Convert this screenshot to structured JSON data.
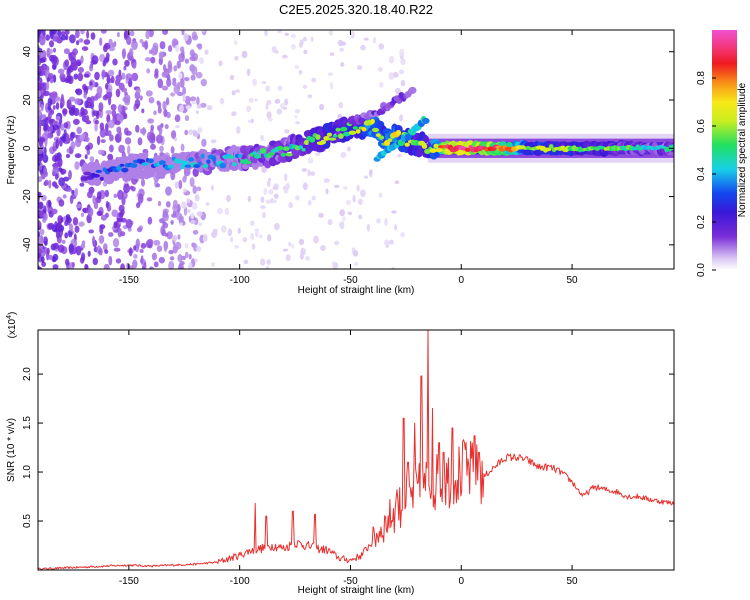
{
  "figure_title": "C2E5.2025.320.18.40.R22",
  "colors": {
    "line": "#e8312e",
    "axis": "#000000",
    "colormap": [
      "#ffffff",
      "#d8c4f2",
      "#7a2cd8",
      "#3a18d8",
      "#1448f0",
      "#18d0e8",
      "#20e060",
      "#c8ee20",
      "#f8e818",
      "#f89018",
      "#f01a20",
      "#f23c8a",
      "#f050d0"
    ]
  },
  "chart_data": [
    {
      "id": "spectrogram",
      "type": "heatmap",
      "xlabel": "Height of straight line (km)",
      "ylabel": "Frequency (Hz)",
      "xlim": [
        -191,
        96
      ],
      "ylim": [
        -50,
        49
      ],
      "xticks": [
        -150,
        -100,
        -50,
        0,
        50
      ],
      "xtick_labels": [
        "-150",
        "-100",
        "-50",
        "0",
        "50"
      ],
      "yticks": [
        40,
        20,
        0,
        -20,
        -40
      ],
      "ytick_labels": [
        "40",
        "20",
        "0",
        "-20",
        "-40"
      ],
      "colorbar": {
        "label": "Normalized spectral amplitude",
        "range": [
          0,
          1
        ],
        "ticks": [
          0.0,
          0.2,
          0.4,
          0.6,
          0.8
        ],
        "tick_labels": [
          "0.0",
          "0.2",
          "0.4",
          "0.6",
          "0.8"
        ]
      },
      "ridge": {
        "x": [
          -170,
          -160,
          -150,
          -140,
          -130,
          -120,
          -110,
          -100,
          -90,
          -80,
          -70,
          -60,
          -55,
          -50,
          -45,
          -40,
          -35,
          -30,
          -25,
          -20,
          -15,
          -10,
          -5,
          0,
          10,
          20,
          30,
          50,
          70,
          95
        ],
        "freq": [
          -11,
          -10,
          -8,
          -7,
          -6,
          -6,
          -5,
          -4,
          -3,
          -1,
          2,
          5,
          7,
          8,
          9,
          10,
          4,
          5,
          3,
          2,
          1,
          0,
          0,
          0,
          0,
          0,
          0,
          0,
          0,
          0
        ],
        "amplitude": [
          0.25,
          0.3,
          0.32,
          0.35,
          0.38,
          0.4,
          0.42,
          0.42,
          0.45,
          0.45,
          0.5,
          0.55,
          0.5,
          0.55,
          0.6,
          0.65,
          0.6,
          0.65,
          0.6,
          0.55,
          0.55,
          0.7,
          0.9,
          0.9,
          0.85,
          0.8,
          0.6,
          0.55,
          0.5,
          0.45
        ]
      },
      "branches": [
        {
          "x": [
            -38,
            -30,
            -22,
            -16
          ],
          "freq": [
            -4,
            1,
            7,
            12
          ]
        },
        {
          "x": [
            -50,
            -40,
            -32,
            -27,
            -22
          ],
          "freq": [
            11,
            14,
            18,
            21,
            23
          ]
        }
      ]
    },
    {
      "id": "snr",
      "type": "line",
      "xlabel": "Height of straight line (km)",
      "ylabel": "SNR (10 * v/v)",
      "multiplier_label": "(x10",
      "multiplier_exponent": "4",
      "xlim": [
        -191,
        96
      ],
      "ylim": [
        0,
        2.45
      ],
      "xticks": [
        -150,
        -100,
        -50,
        0,
        50
      ],
      "xtick_labels": [
        "-150",
        "-100",
        "-50",
        "0",
        "50"
      ],
      "yticks": [
        0.5,
        1.0,
        1.5,
        2.0
      ],
      "ytick_labels": [
        "0.5",
        "1.0",
        "1.5",
        "2.0"
      ],
      "series": [
        {
          "name": "SNR",
          "x": [
            -191,
            -180,
            -170,
            -160,
            -150,
            -140,
            -130,
            -120,
            -110,
            -100,
            -95,
            -90,
            -85,
            -80,
            -75,
            -70,
            -65,
            -60,
            -55,
            -50,
            -45,
            -40,
            -35,
            -30,
            -25,
            -20,
            -15,
            -10,
            -5,
            0,
            5,
            10,
            15,
            20,
            25,
            30,
            35,
            40,
            45,
            50,
            55,
            60,
            65,
            70,
            75,
            80,
            85,
            90,
            96
          ],
          "values": [
            0.01,
            0.02,
            0.03,
            0.04,
            0.05,
            0.04,
            0.05,
            0.06,
            0.08,
            0.15,
            0.2,
            0.22,
            0.25,
            0.22,
            0.28,
            0.25,
            0.22,
            0.2,
            0.12,
            0.1,
            0.15,
            0.3,
            0.45,
            0.6,
            0.7,
            0.8,
            0.9,
            0.9,
            0.95,
            1.0,
            1.0,
            0.95,
            1.05,
            1.15,
            1.15,
            1.12,
            1.05,
            1.05,
            1.0,
            0.9,
            0.75,
            0.85,
            0.82,
            0.8,
            0.75,
            0.75,
            0.72,
            0.7,
            0.68
          ]
        }
      ],
      "spikes": [
        {
          "x": -93,
          "value": 0.68
        },
        {
          "x": -88,
          "value": 0.55
        },
        {
          "x": -76,
          "value": 0.6
        },
        {
          "x": -66,
          "value": 0.57
        },
        {
          "x": -29,
          "value": 0.82
        },
        {
          "x": -26,
          "value": 1.55
        },
        {
          "x": -24,
          "value": 1.1
        },
        {
          "x": -21,
          "value": 1.5
        },
        {
          "x": -18,
          "value": 1.98
        },
        {
          "x": -15,
          "value": 2.45
        },
        {
          "x": -13,
          "value": 1.65
        },
        {
          "x": -10,
          "value": 1.3
        },
        {
          "x": -8,
          "value": 1.2
        },
        {
          "x": -4,
          "value": 1.45
        },
        {
          "x": 1,
          "value": 1.33
        },
        {
          "x": 6,
          "value": 1.37
        },
        {
          "x": 8,
          "value": 1.2
        }
      ]
    }
  ]
}
